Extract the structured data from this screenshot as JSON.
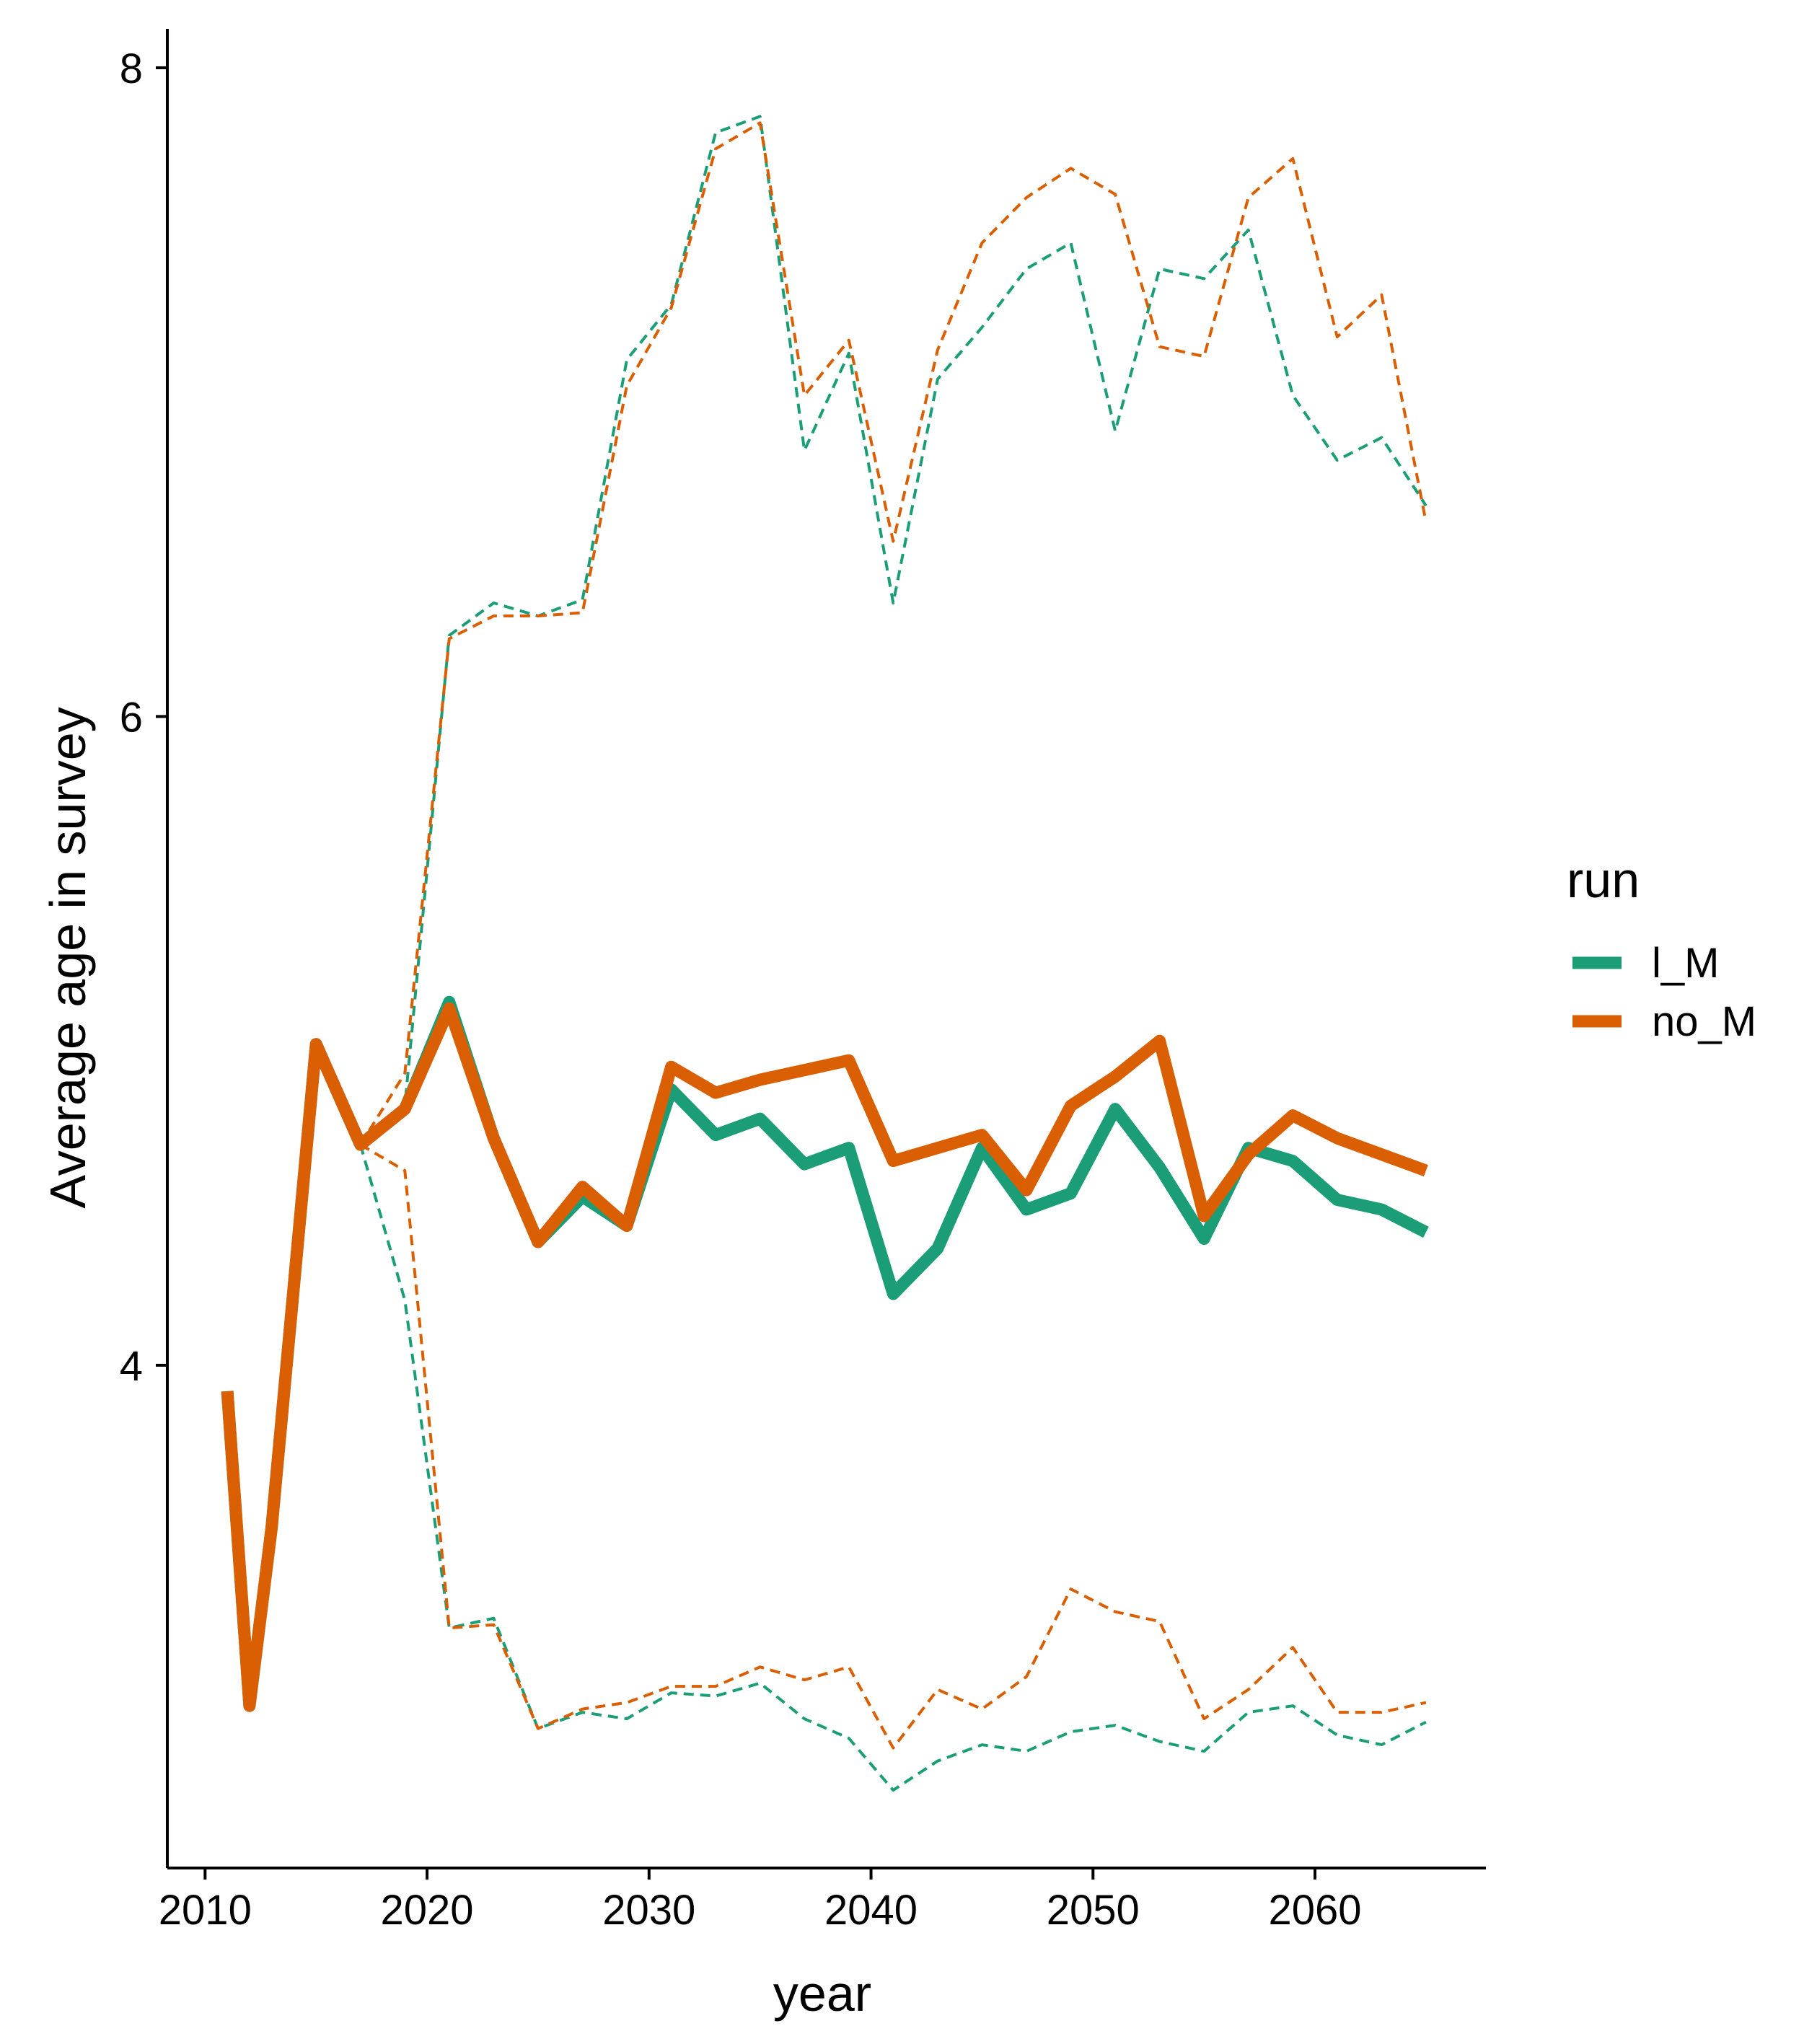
{
  "chart_data": {
    "type": "line",
    "title": "",
    "xlabel": "year",
    "ylabel": "Average age in survey",
    "xlim": [
      2008.3,
      2067.7
    ],
    "ylim": [
      2.45,
      8.12
    ],
    "x_ticks": [
      2010,
      2020,
      2030,
      2040,
      2050,
      2060
    ],
    "y_ticks": [
      4,
      6,
      8
    ],
    "grid": false,
    "legend": {
      "title": "run",
      "position": "right"
    },
    "colors": {
      "l_M": "#1b9e77",
      "no_M": "#d95f02"
    },
    "series": [
      {
        "name": "l_M",
        "style": "solid",
        "x": [
          2011,
          2012,
          2013,
          2015,
          2017,
          2019,
          2021,
          2023,
          2025,
          2027,
          2029,
          2031,
          2033,
          2035,
          2037,
          2039,
          2041,
          2043,
          2045,
          2047,
          2049,
          2051,
          2053,
          2055,
          2057,
          2059,
          2061,
          2063,
          2065
        ],
        "y": [
          3.92,
          2.95,
          3.5,
          4.99,
          4.68,
          4.79,
          5.12,
          4.7,
          4.38,
          4.52,
          4.43,
          4.85,
          4.71,
          4.76,
          4.62,
          4.67,
          4.22,
          4.36,
          4.67,
          4.48,
          4.53,
          4.79,
          4.61,
          4.39,
          4.67,
          4.63,
          4.51,
          4.48,
          4.41
        ]
      },
      {
        "name": "no_M",
        "style": "solid",
        "x": [
          2011,
          2012,
          2013,
          2015,
          2017,
          2019,
          2021,
          2023,
          2025,
          2027,
          2029,
          2031,
          2033,
          2035,
          2037,
          2039,
          2041,
          2043,
          2045,
          2047,
          2049,
          2051,
          2053,
          2055,
          2057,
          2059,
          2061,
          2063,
          2065
        ],
        "y": [
          3.92,
          2.95,
          3.5,
          4.99,
          4.68,
          4.79,
          5.1,
          4.7,
          4.38,
          4.55,
          4.43,
          4.92,
          4.84,
          4.88,
          4.91,
          4.94,
          4.63,
          4.67,
          4.71,
          4.54,
          4.8,
          4.89,
          5.0,
          4.46,
          4.65,
          4.77,
          4.7,
          4.65,
          4.6
        ]
      },
      {
        "name": "l_M upper bound",
        "style": "dashed",
        "x": [
          2017,
          2019,
          2021,
          2023,
          2025,
          2027,
          2029,
          2031,
          2033,
          2035,
          2037,
          2039,
          2041,
          2043,
          2045,
          2047,
          2049,
          2051,
          2053,
          2055,
          2057,
          2059,
          2061,
          2063,
          2065
        ],
        "y": [
          4.68,
          4.8,
          6.25,
          6.35,
          6.31,
          6.36,
          7.1,
          7.27,
          7.8,
          7.85,
          6.82,
          7.12,
          6.35,
          7.04,
          7.2,
          7.38,
          7.46,
          6.88,
          7.38,
          7.35,
          7.5,
          6.99,
          6.79,
          6.86,
          6.65
        ]
      },
      {
        "name": "no_M upper bound",
        "style": "dashed",
        "x": [
          2017,
          2019,
          2021,
          2023,
          2025,
          2027,
          2029,
          2031,
          2033,
          2035,
          2037,
          2039,
          2041,
          2043,
          2045,
          2047,
          2049,
          2051,
          2053,
          2055,
          2057,
          2059,
          2061,
          2063,
          2065
        ],
        "y": [
          4.68,
          4.9,
          6.24,
          6.31,
          6.31,
          6.32,
          7.02,
          7.26,
          7.75,
          7.83,
          6.99,
          7.16,
          6.54,
          7.13,
          7.46,
          7.6,
          7.69,
          7.61,
          7.14,
          7.11,
          7.6,
          7.72,
          7.17,
          7.3,
          6.6
        ]
      },
      {
        "name": "l_M lower bound",
        "style": "dashed",
        "x": [
          2017,
          2019,
          2021,
          2023,
          2025,
          2027,
          2029,
          2031,
          2033,
          2035,
          2037,
          2039,
          2041,
          2043,
          2045,
          2047,
          2049,
          2051,
          2053,
          2055,
          2057,
          2059,
          2061,
          2063,
          2065
        ],
        "y": [
          4.68,
          4.2,
          3.19,
          3.22,
          2.88,
          2.93,
          2.91,
          2.99,
          2.98,
          3.02,
          2.91,
          2.85,
          2.69,
          2.78,
          2.83,
          2.81,
          2.87,
          2.89,
          2.84,
          2.81,
          2.93,
          2.95,
          2.86,
          2.83,
          2.9
        ]
      },
      {
        "name": "no_M lower bound",
        "style": "dashed",
        "x": [
          2017,
          2019,
          2021,
          2023,
          2025,
          2027,
          2029,
          2031,
          2033,
          2035,
          2037,
          2039,
          2041,
          2043,
          2045,
          2047,
          2049,
          2051,
          2053,
          2055,
          2057,
          2059,
          2061,
          2063,
          2065
        ],
        "y": [
          4.68,
          4.6,
          3.19,
          3.2,
          2.88,
          2.94,
          2.96,
          3.01,
          3.01,
          3.07,
          3.03,
          3.07,
          2.82,
          3.0,
          2.94,
          3.04,
          3.31,
          3.24,
          3.21,
          2.91,
          3.0,
          3.13,
          2.93,
          2.93,
          2.96
        ]
      }
    ]
  }
}
